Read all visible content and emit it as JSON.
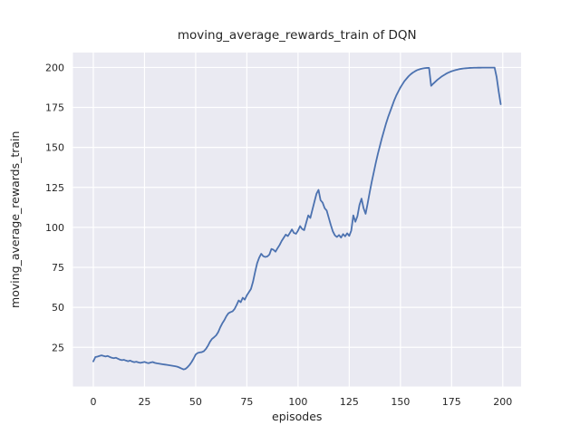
{
  "figure": {
    "title": "moving_average_rewards_train of DQN",
    "x_axis": {
      "label": "episodes"
    },
    "y_axis": {
      "label": "moving_average_rewards_train"
    }
  },
  "colors": {
    "line": "#4C72B0",
    "plot_background": "#EAEAF2",
    "grid": "#FFFFFF",
    "text": "#262626",
    "figure_background": "#FFFFFF"
  },
  "chart_data": {
    "type": "line",
    "title": "moving_average_rewards_train of DQN",
    "xlabel": "episodes",
    "ylabel": "moving_average_rewards_train",
    "x_ticks": [
      0,
      25,
      50,
      75,
      100,
      125,
      150,
      175,
      200
    ],
    "y_ticks": [
      25,
      50,
      75,
      100,
      125,
      150,
      175,
      200
    ],
    "xlim": [
      -9.95,
      208.95
    ],
    "ylim": [
      0.5,
      209.3
    ],
    "grid": true,
    "legend": null,
    "line_color": "#4C72B0",
    "series": [
      {
        "name": "moving_average_rewards_train",
        "x_is_index": true,
        "y": [
          16.2,
          18.9,
          19.2,
          19.6,
          20.0,
          19.6,
          19.3,
          19.6,
          19.0,
          18.5,
          18.2,
          18.5,
          17.9,
          17.3,
          17.0,
          17.2,
          16.7,
          16.3,
          16.7,
          16.1,
          15.7,
          16.0,
          15.6,
          15.3,
          15.6,
          15.9,
          15.4,
          15.1,
          15.5,
          15.8,
          15.3,
          15.0,
          14.8,
          14.6,
          14.4,
          14.2,
          14.0,
          13.8,
          13.6,
          13.4,
          13.2,
          12.9,
          12.4,
          11.8,
          11.2,
          11.5,
          12.6,
          14.0,
          15.8,
          18.0,
          20.5,
          21.5,
          21.8,
          22.0,
          22.6,
          24.0,
          26.0,
          28.5,
          30.3,
          31.3,
          32.5,
          34.5,
          37.5,
          40.0,
          42.0,
          44.5,
          46.3,
          47.0,
          47.5,
          49.0,
          51.5,
          54.3,
          53.2,
          56.0,
          54.8,
          57.5,
          59.5,
          61.5,
          66.0,
          72.0,
          77.5,
          81.0,
          83.5,
          82.0,
          81.5,
          81.8,
          83.0,
          86.5,
          86.0,
          84.8,
          87.0,
          89.0,
          91.5,
          93.5,
          95.5,
          94.5,
          96.5,
          98.7,
          96.5,
          96.0,
          98.0,
          100.8,
          99.0,
          98.3,
          103.0,
          107.5,
          105.9,
          111.0,
          116.0,
          121.0,
          123.4,
          117.0,
          115.5,
          112.0,
          110.5,
          106.0,
          101.5,
          97.5,
          95.0,
          94.0,
          95.2,
          93.6,
          95.8,
          94.4,
          96.3,
          94.7,
          98.0,
          107.5,
          103.5,
          107.0,
          114.0,
          118.0,
          112.0,
          108.5,
          115.0,
          122.0,
          128.5,
          134.5,
          140.5,
          146.0,
          151.0,
          156.0,
          160.5,
          165.0,
          169.0,
          172.5,
          176.0,
          179.5,
          182.5,
          185.0,
          187.5,
          189.5,
          191.5,
          193.0,
          194.5,
          195.7,
          196.7,
          197.5,
          198.2,
          198.7,
          199.1,
          199.4,
          199.6,
          199.7,
          199.7,
          188.5,
          189.8,
          191.0,
          192.2,
          193.2,
          194.2,
          195.0,
          195.8,
          196.5,
          197.1,
          197.6,
          198.0,
          198.4,
          198.7,
          199.0,
          199.2,
          199.4,
          199.5,
          199.6,
          199.7,
          199.75,
          199.8,
          199.8,
          199.85,
          199.85,
          199.9,
          199.9,
          199.9,
          199.9,
          199.9,
          199.9,
          199.9,
          194.0,
          185.0,
          177.0
        ]
      }
    ]
  }
}
